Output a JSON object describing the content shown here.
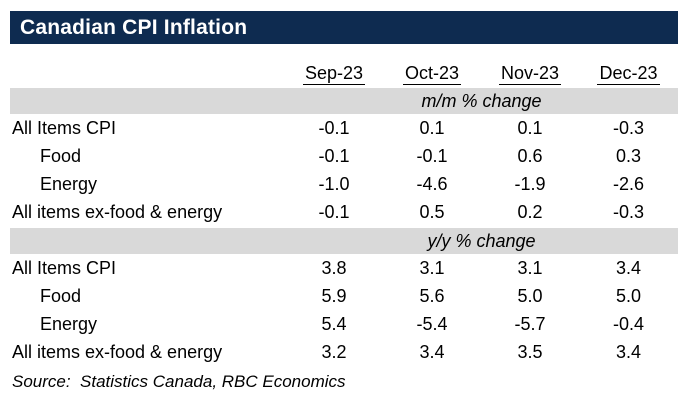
{
  "title": "Canadian CPI Inflation",
  "colors": {
    "title_bar_navy": "#0E2B50",
    "section_band_gray": "#D9D9D9",
    "text": "#000000",
    "title_text": "#FFFFFF"
  },
  "source_line": "Source:  Statistics Canada, RBC Economics",
  "chart_data": {
    "type": "table",
    "title": "Canadian CPI Inflation",
    "columns": [
      "Sep-23",
      "Oct-23",
      "Nov-23",
      "Dec-23"
    ],
    "sections": [
      {
        "header": "m/m % change",
        "rows": [
          {
            "label": "All Items CPI",
            "values": [
              "-0.1",
              "0.1",
              "0.1",
              "-0.3"
            ]
          },
          {
            "label": "Food",
            "values": [
              "-0.1",
              "-0.1",
              "0.6",
              "0.3"
            ]
          },
          {
            "label": "Energy",
            "values": [
              "-1.0",
              "-4.6",
              "-1.9",
              "-2.6"
            ]
          },
          {
            "label": "All items ex-food & energy",
            "values": [
              "-0.1",
              "0.5",
              "0.2",
              "-0.3"
            ]
          }
        ]
      },
      {
        "header": "y/y % change",
        "rows": [
          {
            "label": "All Items CPI",
            "values": [
              "3.8",
              "3.1",
              "3.1",
              "3.4"
            ]
          },
          {
            "label": "Food",
            "values": [
              "5.9",
              "5.6",
              "5.0",
              "5.0"
            ]
          },
          {
            "label": "Energy",
            "values": [
              "5.4",
              "-5.4",
              "-5.7",
              "-0.4"
            ]
          },
          {
            "label": "All items ex-food & energy",
            "values": [
              "3.2",
              "3.4",
              "3.5",
              "3.4"
            ]
          }
        ]
      }
    ],
    "source": "Source:  Statistics Canada, RBC Economics"
  }
}
